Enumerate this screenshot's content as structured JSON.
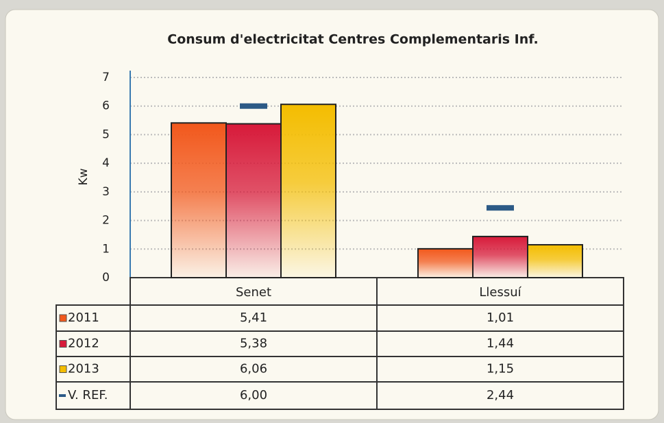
{
  "chart_data": {
    "type": "bar",
    "title": "Consum d'electricitat Centres Complementaris Inf.",
    "y_label": "Kw",
    "categories": [
      "Senet",
      "Llessuí"
    ],
    "series": [
      {
        "name": "2011",
        "color": "#f2581c",
        "values": [
          5.41,
          1.01
        ],
        "value_labels": [
          "5,41",
          "1,01"
        ]
      },
      {
        "name": "2012",
        "color": "#d71a3a",
        "values": [
          5.38,
          1.44
        ],
        "value_labels": [
          "5,38",
          "1,44"
        ]
      },
      {
        "name": "2013",
        "color": "#f4bd00",
        "values": [
          6.06,
          1.15
        ],
        "value_labels": [
          "6,06",
          "1,15"
        ]
      },
      {
        "name": "V. REF.",
        "color": "#2c5a86",
        "marker": "dash",
        "values": [
          6.0,
          2.44
        ],
        "value_labels": [
          "6,00",
          "2,44"
        ]
      }
    ],
    "ylim": [
      0,
      7
    ],
    "yticks": [
      0,
      1,
      2,
      3,
      4,
      5,
      6,
      7
    ],
    "grid": true
  }
}
